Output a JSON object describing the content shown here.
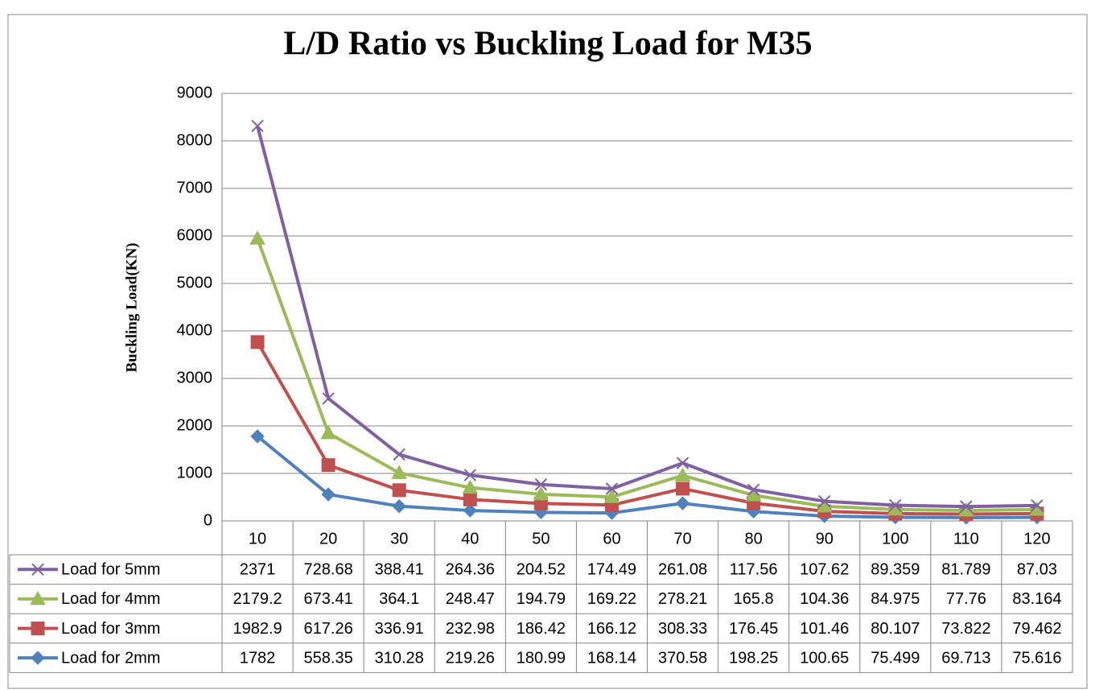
{
  "chart_data": {
    "type": "stacked-line",
    "title": "L/D Ratio vs Buckling Load for M35",
    "y_label": "Buckling Load(KN)",
    "categories": [
      10,
      20,
      30,
      40,
      50,
      60,
      70,
      80,
      90,
      100,
      110,
      120
    ],
    "ylim": [
      0,
      9000
    ],
    "yticks": [
      0,
      1000,
      2000,
      3000,
      4000,
      5000,
      6000,
      7000,
      8000,
      9000
    ],
    "grid": true,
    "series": [
      {
        "name": "Load for 5mm",
        "color": "#7f60a0",
        "marker": "x",
        "values": [
          2371,
          728.68,
          388.41,
          264.36,
          204.52,
          174.49,
          261.08,
          117.56,
          107.62,
          89.359,
          81.789,
          87.03
        ]
      },
      {
        "name": "Load for 4mm",
        "color": "#9bbb59",
        "marker": "triangle",
        "values": [
          2179.2,
          673.41,
          364.1,
          248.47,
          194.79,
          169.22,
          278.21,
          165.8,
          104.36,
          84.975,
          77.76,
          83.164
        ]
      },
      {
        "name": "Load for 3mm",
        "color": "#c0504d",
        "marker": "square",
        "values": [
          1982.9,
          617.26,
          336.91,
          232.98,
          186.42,
          166.12,
          308.33,
          176.45,
          101.46,
          80.107,
          73.822,
          79.462
        ]
      },
      {
        "name": "Load for 2mm",
        "color": "#4f81bd",
        "marker": "diamond",
        "values": [
          1782,
          558.35,
          310.28,
          219.26,
          180.99,
          168.14,
          370.58,
          198.25,
          100.65,
          75.499,
          69.713,
          75.616
        ]
      }
    ]
  }
}
